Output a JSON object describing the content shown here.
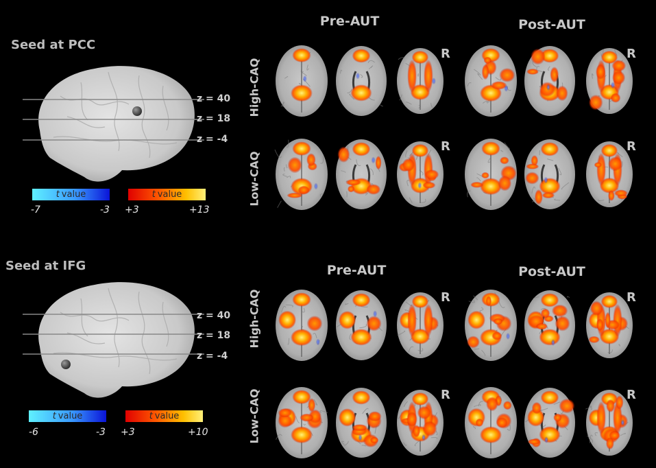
{
  "panels": [
    {
      "seed_title": "Seed at PCC",
      "z_labels": [
        "z = 40",
        "z = 18",
        "z = -4"
      ],
      "colorbar_negative": {
        "t": "t",
        "label": "value",
        "min": "-7",
        "max": "-3"
      },
      "colorbar_positive": {
        "t": "t",
        "label": "value",
        "min": "+3",
        "max": "+13"
      },
      "column_titles": [
        "Pre-AUT",
        "Post-AUT"
      ],
      "row_labels": [
        "High-CAQ",
        "Low-CAQ"
      ],
      "r_marker": "R"
    },
    {
      "seed_title": "Seed at IFG",
      "z_labels": [
        "z = 40",
        "z = 18",
        "z = -4"
      ],
      "colorbar_negative": {
        "t": "t",
        "label": "value",
        "min": "-6",
        "max": "-3"
      },
      "colorbar_positive": {
        "t": "t",
        "label": "value",
        "min": "+3",
        "max": "+10"
      },
      "column_titles": [
        "Pre-AUT",
        "Post-AUT"
      ],
      "row_labels": [
        "High-CAQ",
        "Low-CAQ"
      ],
      "r_marker": "R"
    }
  ],
  "colors": {
    "background": "#000000",
    "brain_gray": "#bcbcbc",
    "activation_hot": "#ff6a00",
    "activation_peak": "#ffe060",
    "activation_cool": "#2a4bff"
  }
}
